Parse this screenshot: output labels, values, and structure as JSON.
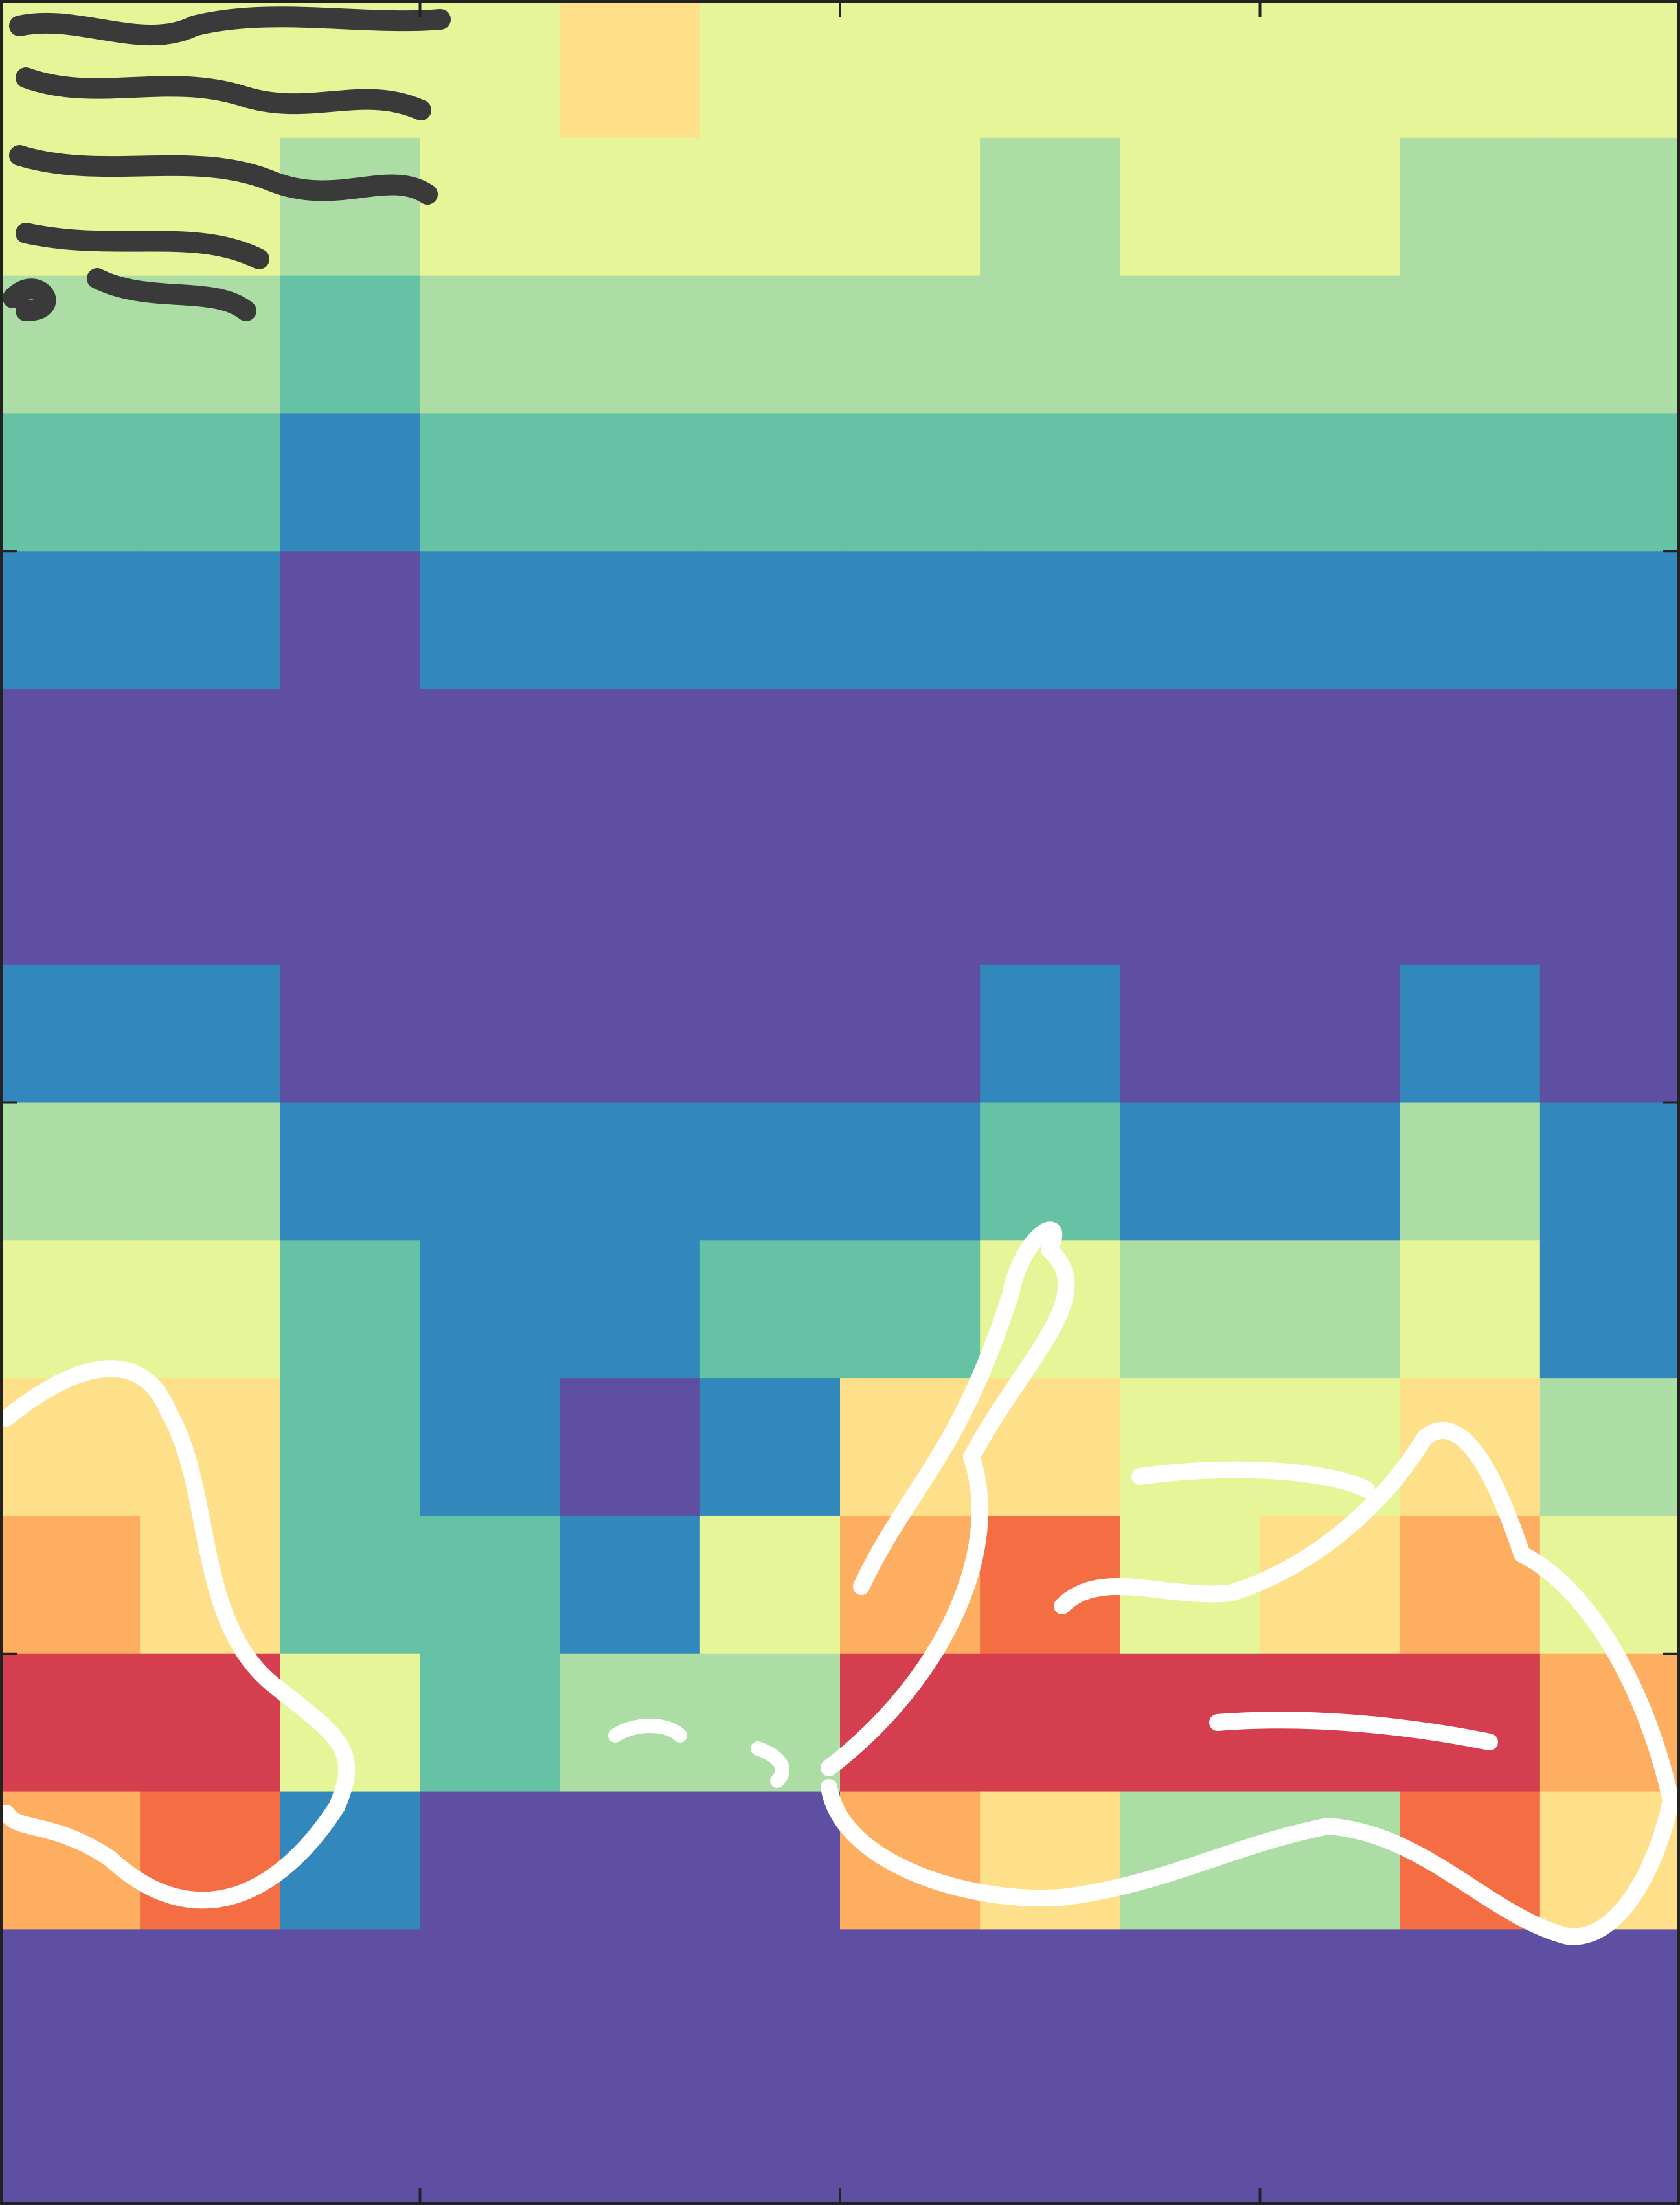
{
  "chart_data": {
    "type": "heatmap",
    "colorscale": [
      "#5e4fa2",
      "#3288bd",
      "#66c2a5",
      "#abdda4",
      "#e6f598",
      "#fee08b",
      "#fdae61",
      "#f46d43",
      "#d53e4f",
      "#9e0142"
    ],
    "xlim": [
      0,
      12
    ],
    "ylim": [
      0,
      16
    ],
    "xticks": [
      3,
      6,
      9
    ],
    "yticks": [
      4,
      8,
      12
    ],
    "z": [
      [
        0.45,
        0.45,
        0.4,
        0.45,
        0.5,
        0.45,
        0.45,
        0.4,
        0.45,
        0.45,
        0.4,
        0.4
      ],
      [
        0.4,
        0.4,
        0.35,
        0.4,
        0.4,
        0.4,
        0.4,
        0.35,
        0.4,
        0.4,
        0.35,
        0.35
      ],
      [
        0.3,
        0.3,
        0.25,
        0.3,
        0.3,
        0.3,
        0.3,
        0.3,
        0.3,
        0.3,
        0.3,
        0.3
      ],
      [
        0.2,
        0.2,
        0.15,
        0.2,
        0.2,
        0.2,
        0.2,
        0.2,
        0.2,
        0.2,
        0.2,
        0.2
      ],
      [
        0.08,
        0.1,
        0.05,
        0.08,
        0.08,
        0.08,
        0.1,
        0.08,
        0.08,
        0.08,
        0.1,
        0.08
      ],
      [
        0.03,
        0.03,
        0.02,
        0.02,
        0.02,
        0.02,
        0.03,
        0.02,
        0.02,
        0.02,
        0.03,
        0.02
      ],
      [
        0.02,
        0.02,
        0.01,
        0.01,
        0.01,
        0.01,
        0.01,
        0.02,
        0.01,
        0.01,
        0.02,
        0.01
      ],
      [
        0.1,
        0.1,
        0.03,
        0.02,
        0.02,
        0.02,
        0.05,
        0.15,
        0.03,
        0.05,
        0.15,
        0.03
      ],
      [
        0.35,
        0.35,
        0.1,
        0.1,
        0.1,
        0.1,
        0.15,
        0.25,
        0.1,
        0.15,
        0.3,
        0.1
      ],
      [
        0.45,
        0.4,
        0.2,
        0.15,
        0.15,
        0.25,
        0.25,
        0.45,
        0.3,
        0.3,
        0.45,
        0.15
      ],
      [
        0.6,
        0.6,
        0.2,
        0.1,
        0.05,
        0.1,
        0.5,
        0.6,
        0.45,
        0.4,
        0.55,
        0.3
      ],
      [
        0.65,
        0.55,
        0.25,
        0.25,
        0.15,
        0.4,
        0.7,
        0.75,
        0.45,
        0.5,
        0.7,
        0.4
      ],
      [
        0.9,
        0.85,
        0.4,
        0.25,
        0.3,
        0.3,
        0.85,
        0.9,
        0.85,
        0.85,
        0.9,
        0.7
      ],
      [
        0.7,
        0.75,
        0.1,
        0.02,
        0,
        0.05,
        0.7,
        0.6,
        0.3,
        0.35,
        0.75,
        0.6
      ],
      [
        0,
        0,
        0,
        0,
        0,
        0,
        0,
        0,
        0,
        0,
        0,
        0
      ],
      [
        0,
        0,
        0,
        0,
        0,
        0,
        0,
        0,
        0,
        0,
        0,
        0
      ]
    ]
  }
}
